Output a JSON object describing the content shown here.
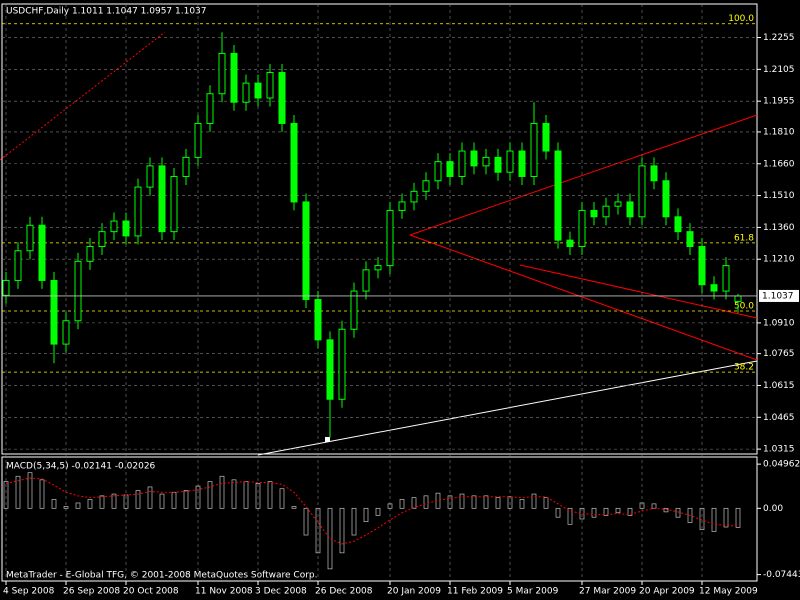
{
  "chart_data": [
    {
      "type": "candlestick",
      "title": "USDCHF,Daily  1.1011 1.1047 1.0957 1.1037",
      "categories": [
        "4 Sep 2008",
        null,
        null,
        null,
        null,
        "26 Sep 2008",
        null,
        null,
        null,
        null,
        "20 Oct 2008",
        null,
        null,
        null,
        null,
        null,
        "11 Nov 2008",
        null,
        null,
        null,
        null,
        "3 Dec 2008",
        null,
        null,
        null,
        null,
        "26 Dec 2008",
        null,
        null,
        null,
        null,
        null,
        "20 Jan 2009",
        null,
        null,
        null,
        null,
        "11 Feb 2009",
        null,
        null,
        null,
        null,
        "5 Mar 2009",
        null,
        null,
        null,
        null,
        null,
        "27 Mar 2009",
        null,
        null,
        null,
        null,
        "20 Apr 2009",
        null,
        null,
        null,
        null,
        "12 May 2009",
        null,
        null,
        null
      ],
      "open": [
        1.104,
        1.111,
        1.125,
        1.137,
        1.111,
        1.081,
        1.092,
        1.12,
        1.127,
        1.134,
        1.139,
        1.132,
        1.155,
        1.165,
        1.134,
        1.16,
        1.169,
        1.185,
        1.199,
        1.218,
        1.195,
        1.204,
        1.197,
        1.209,
        1.185,
        1.148,
        1.102,
        1.083,
        1.055,
        1.088,
        1.106,
        1.116,
        1.118,
        1.144,
        1.148,
        1.153,
        1.158,
        1.167,
        1.16,
        1.172,
        1.165,
        1.169,
        1.162,
        1.172,
        1.16,
        1.185,
        1.172,
        1.13,
        1.127,
        1.144,
        1.141,
        1.146,
        1.148,
        1.141,
        1.165,
        1.158,
        1.141,
        1.134,
        1.127,
        1.109,
        1.106,
        1.1011
      ],
      "high": [
        1.115,
        1.129,
        1.141,
        1.141,
        1.115,
        1.096,
        1.124,
        1.131,
        1.138,
        1.143,
        1.143,
        1.159,
        1.169,
        1.169,
        1.164,
        1.173,
        1.189,
        1.203,
        1.228,
        1.222,
        1.208,
        1.208,
        1.213,
        1.213,
        1.189,
        1.152,
        1.106,
        1.087,
        1.092,
        1.11,
        1.12,
        1.122,
        1.148,
        1.152,
        1.157,
        1.162,
        1.171,
        1.171,
        1.176,
        1.176,
        1.173,
        1.173,
        1.176,
        1.176,
        1.195,
        1.189,
        1.176,
        1.134,
        1.148,
        1.148,
        1.15,
        1.152,
        1.152,
        1.169,
        1.169,
        1.162,
        1.145,
        1.138,
        1.131,
        1.113,
        1.122,
        1.1047
      ],
      "low": [
        1.1,
        1.107,
        1.121,
        1.107,
        1.072,
        1.077,
        1.088,
        1.116,
        1.123,
        1.13,
        1.128,
        1.128,
        1.151,
        1.13,
        1.13,
        1.156,
        1.165,
        1.181,
        1.195,
        1.191,
        1.191,
        1.193,
        1.193,
        1.181,
        1.144,
        1.098,
        1.079,
        1.037,
        1.051,
        1.084,
        1.102,
        1.112,
        1.114,
        1.14,
        1.144,
        1.149,
        1.154,
        1.156,
        1.156,
        1.161,
        1.161,
        1.158,
        1.158,
        1.156,
        1.156,
        1.168,
        1.126,
        1.123,
        1.123,
        1.137,
        1.137,
        1.142,
        1.137,
        1.137,
        1.154,
        1.137,
        1.13,
        1.123,
        1.105,
        1.102,
        1.102,
        1.0957
      ],
      "close": [
        1.111,
        1.125,
        1.137,
        1.111,
        1.081,
        1.092,
        1.12,
        1.127,
        1.134,
        1.139,
        1.132,
        1.155,
        1.165,
        1.134,
        1.16,
        1.169,
        1.185,
        1.199,
        1.218,
        1.195,
        1.204,
        1.197,
        1.209,
        1.185,
        1.148,
        1.102,
        1.083,
        1.055,
        1.088,
        1.106,
        1.116,
        1.118,
        1.144,
        1.148,
        1.153,
        1.158,
        1.167,
        1.16,
        1.172,
        1.165,
        1.169,
        1.162,
        1.172,
        1.16,
        1.185,
        1.172,
        1.13,
        1.127,
        1.144,
        1.141,
        1.146,
        1.148,
        1.141,
        1.165,
        1.158,
        1.141,
        1.134,
        1.127,
        1.109,
        1.106,
        1.118,
        1.1037
      ],
      "color": "#00ff00",
      "ylim": [
        1.0292,
        1.2413
      ],
      "yticks": [
        1.2255,
        1.2105,
        1.1955,
        {
          "value": 1.181,
          "label": "1.1810"
        },
        {
          "value": 1.166,
          "label": "1.1660"
        },
        {
          "value": 1.151,
          "label": "1.1510"
        },
        {
          "value": 1.136,
          "label": "1.1360"
        },
        {
          "value": 1.121,
          "label": "1.1210"
        },
        {
          "value": 1.091,
          "label": "1.0910"
        },
        1.0765,
        1.0615,
        1.0465,
        1.0315
      ],
      "grid": true,
      "last_price": 1.1037,
      "levels": [
        {
          "value": 1.232,
          "label": "100.0"
        },
        {
          "value": 1.1287,
          "label": "61.8"
        },
        {
          "value": 1.0966,
          "label": "50.0"
        },
        {
          "value": 1.0678,
          "label": "38.2"
        }
      ],
      "level_color": "#ffff00"
    },
    {
      "type": "macd",
      "title": "MACD(5,34,5) -0.02141 -0.02026",
      "annotation": "MetaTrader - E-Global TFG, © 2001-2008 MetaQuotes Software Corp.",
      "histogram": {
        "color": "#c0c0c0",
        "values": [
          0.03,
          0.036,
          0.04,
          0.032,
          0.01,
          0.002,
          0.006,
          0.01,
          0.014,
          0.016,
          0.015,
          0.02,
          0.024,
          0.016,
          0.018,
          0.02,
          0.025,
          0.03,
          0.036,
          0.032,
          0.03,
          0.028,
          0.03,
          0.022,
          0.002,
          -0.03,
          -0.05,
          -0.068,
          -0.05,
          -0.03,
          -0.015,
          -0.008,
          0.005,
          0.01,
          0.012,
          0.014,
          0.017,
          0.014,
          0.016,
          0.014,
          0.014,
          0.012,
          0.013,
          0.01,
          0.016,
          0.012,
          -0.01,
          -0.018,
          -0.012,
          -0.01,
          -0.008,
          -0.005,
          -0.008,
          0.006,
          0.005,
          -0.004,
          -0.01,
          -0.016,
          -0.024,
          -0.026,
          -0.021,
          -0.02141
        ]
      },
      "signal": {
        "color": "#ff0000",
        "values": [
          0.028,
          0.031,
          0.034,
          0.033,
          0.026,
          0.018,
          0.014,
          0.012,
          0.013,
          0.014,
          0.015,
          0.016,
          0.019,
          0.018,
          0.018,
          0.019,
          0.021,
          0.024,
          0.028,
          0.029,
          0.03,
          0.029,
          0.029,
          0.027,
          0.018,
          0.002,
          -0.016,
          -0.034,
          -0.04,
          -0.037,
          -0.03,
          -0.022,
          -0.013,
          -0.005,
          0.001,
          0.005,
          0.009,
          0.011,
          0.013,
          0.013,
          0.013,
          0.013,
          0.013,
          0.012,
          0.013,
          0.013,
          0.005,
          -0.003,
          -0.006,
          -0.007,
          -0.007,
          -0.006,
          -0.007,
          -0.003,
          0.0,
          -0.001,
          -0.004,
          -0.008,
          -0.013,
          -0.018,
          -0.019,
          -0.02026
        ]
      },
      "ylim": [
        -0.0805,
        0.0565
      ],
      "yticks": [
        0.04962,
        {
          "value": 0,
          "label": "0.00"
        },
        -0.07443
      ]
    }
  ]
}
